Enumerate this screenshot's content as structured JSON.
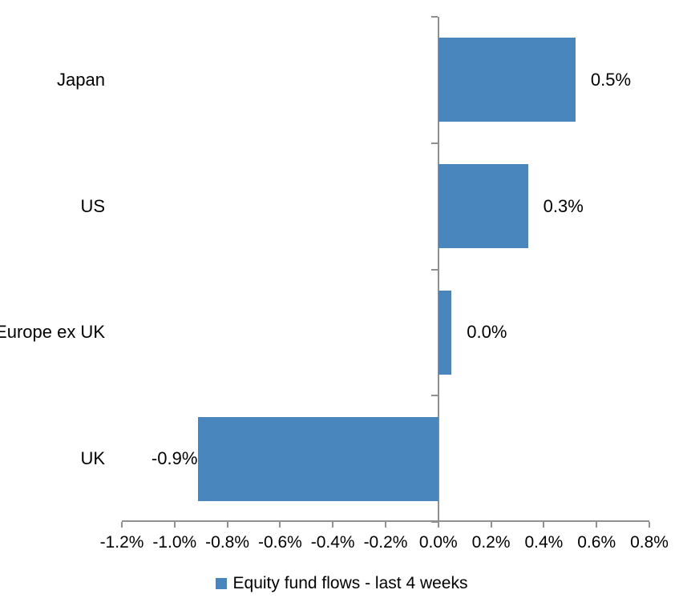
{
  "chart_data": {
    "type": "bar",
    "orientation": "horizontal",
    "title": "",
    "categories": [
      "Japan",
      "US",
      "Europe ex UK",
      "UK"
    ],
    "values": [
      0.5,
      0.3,
      0.0,
      -0.9
    ],
    "values_precise_pct": [
      0.52,
      0.34,
      0.05,
      -0.91
    ],
    "value_labels": [
      "0.5%",
      "0.3%",
      "0.0%",
      "-0.9%"
    ],
    "value_label_position": "outside-end",
    "xlim": [
      -1.2,
      0.8
    ],
    "x_ticks": [
      -1.2,
      -1.0,
      -0.8,
      -0.6,
      -0.4,
      -0.2,
      0.0,
      0.2,
      0.4,
      0.6,
      0.8
    ],
    "x_tick_labels": [
      "-1.2%",
      "-1.0%",
      "-0.8%",
      "-0.6%",
      "-0.4%",
      "-0.2%",
      "0.0%",
      "0.2%",
      "0.4%",
      "0.6%",
      "0.8%"
    ],
    "grid": false,
    "legend_position": "bottom",
    "legend": [
      {
        "label": "Equity fund flows - last 4 weeks",
        "color": "#4a86be"
      }
    ],
    "colors": {
      "bar": "#4a86be",
      "axis": "#909090",
      "text": "#000000",
      "background": "#ffffff"
    }
  }
}
